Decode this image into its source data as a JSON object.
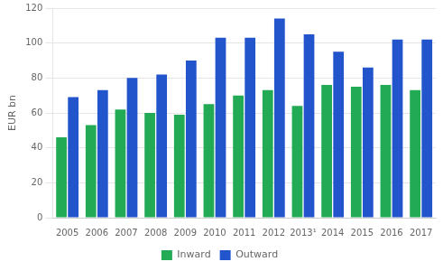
{
  "chart_data": {
    "type": "bar",
    "categories": [
      "2005",
      "2006",
      "2007",
      "2008",
      "2009",
      "2010",
      "2011",
      "2012",
      "2013¹",
      "2014",
      "2015",
      "2016",
      "2017"
    ],
    "series": [
      {
        "name": "Inward",
        "color": "#22aa55",
        "values": [
          46,
          53,
          62,
          60,
          59,
          65,
          70,
          73,
          64,
          76,
          75,
          76,
          73
        ]
      },
      {
        "name": "Outward",
        "color": "#2255cc",
        "values": [
          69,
          73,
          80,
          82,
          90,
          103,
          103,
          114,
          105,
          95,
          86,
          102,
          102
        ]
      }
    ],
    "ylabel": "EUR bn",
    "ylim": [
      0,
      120
    ],
    "yticks": [
      0,
      20,
      40,
      60,
      80,
      100,
      120
    ],
    "grid": true,
    "legend": "bottom"
  }
}
